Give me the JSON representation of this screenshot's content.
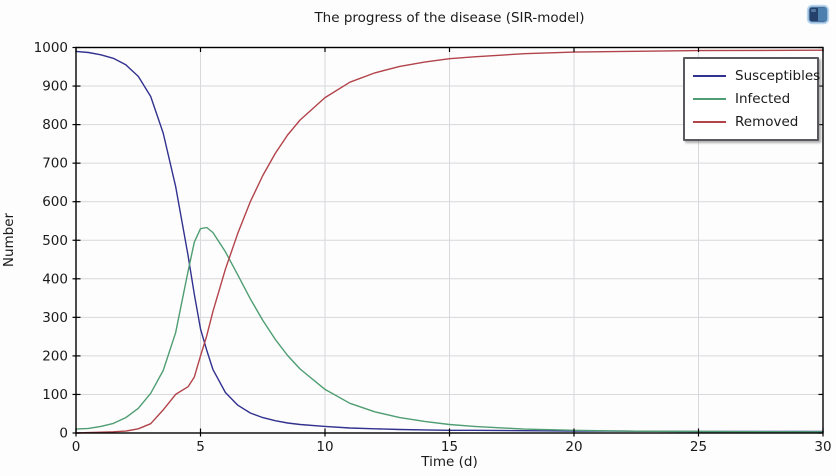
{
  "window": {
    "background": "#fdfdfd"
  },
  "icons": {
    "corner": "screen-icon"
  },
  "colors": {
    "axis": "#000000",
    "grid": "#d8d8dd",
    "text": "#1b1b1b",
    "legend_border": "#5a5a5e",
    "susceptibles": "#31318f",
    "infected": "#4f9d72",
    "removed": "#b2434a"
  },
  "chart_data": {
    "type": "line",
    "title": "The progress of the disease (SIR-model)",
    "xlabel": "Time (d)",
    "ylabel": "Number",
    "xlim": [
      0,
      30
    ],
    "ylim": [
      0,
      1000
    ],
    "x_ticks": [
      0,
      5,
      10,
      15,
      20,
      25,
      30
    ],
    "y_ticks": [
      0,
      100,
      200,
      300,
      400,
      500,
      600,
      700,
      800,
      900,
      1000
    ],
    "grid": true,
    "legend_position": "top-right",
    "t": [
      0,
      0.5,
      1,
      1.5,
      2,
      2.5,
      3,
      3.5,
      4,
      4.5,
      4.75,
      5,
      5.25,
      5.5,
      6,
      6.5,
      7,
      7.5,
      8,
      8.5,
      9,
      10,
      11,
      12,
      13,
      14,
      15,
      16,
      18,
      20,
      22,
      25,
      30
    ],
    "series": [
      {
        "name": "Susceptibles",
        "color": "#31318f",
        "values": [
          990,
          987,
          981,
          972,
          955,
          925,
          873,
          778,
          640,
          460,
          360,
          270,
          215,
          165,
          105,
          72,
          52,
          40,
          32,
          26,
          22,
          17,
          13,
          11,
          9,
          8,
          7,
          7,
          6,
          5,
          5,
          4,
          4
        ]
      },
      {
        "name": "Infected",
        "color": "#4f9d72",
        "values": [
          10,
          12,
          17,
          25,
          40,
          64,
          103,
          162,
          260,
          420,
          495,
          530,
          533,
          520,
          470,
          410,
          348,
          292,
          243,
          201,
          166,
          113,
          77,
          55,
          40,
          30,
          22,
          17,
          10,
          7,
          5,
          4,
          3
        ]
      },
      {
        "name": "Removed",
        "color": "#b2434a",
        "values": [
          0,
          1,
          2,
          3,
          5,
          11,
          24,
          60,
          100,
          120,
          145,
          200,
          252,
          315,
          425,
          518,
          600,
          668,
          725,
          773,
          812,
          870,
          910,
          934,
          951,
          962,
          971,
          976,
          984,
          988,
          990,
          992,
          993
        ]
      }
    ],
    "annotations": {
      "peak_infected": {
        "t": 5.25,
        "value": 533
      },
      "final_removed": 993,
      "initial_susceptibles": 990
    }
  }
}
